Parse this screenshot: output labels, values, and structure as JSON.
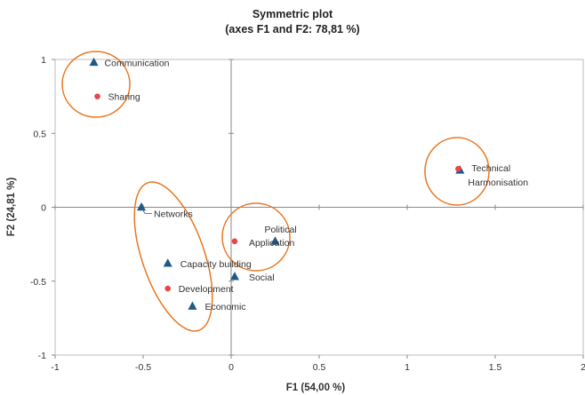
{
  "chart_data": {
    "type": "scatter",
    "title": "Symmetric plot",
    "subtitle": "(axes F1 and F2: 78,81 %)",
    "xlabel": "F1 (54,00 %)",
    "ylabel": "F2 (24,81 %)",
    "xlim": [
      -1,
      2
    ],
    "ylim": [
      -1,
      1
    ],
    "x_ticks": [
      "-1",
      "-0.5",
      "0",
      "0.5",
      "1",
      "1.5",
      "2"
    ],
    "y_ticks": [
      "1",
      "0.5",
      "0",
      "-0.5",
      "-1"
    ],
    "grid": false,
    "legend": "none",
    "series": [
      {
        "marker": "triangle",
        "color": "#1f5a86",
        "points": [
          {
            "label": "Communication",
            "x": -0.78,
            "y": 0.98
          },
          {
            "label": "Networks",
            "x": -0.51,
            "y": 0.0
          },
          {
            "label": "Political",
            "x": 0.25,
            "y": -0.23
          },
          {
            "label": "Capacity building",
            "x": -0.36,
            "y": -0.38
          },
          {
            "label": "Social",
            "x": 0.02,
            "y": -0.47
          },
          {
            "label": "Economic",
            "x": -0.22,
            "y": -0.67
          },
          {
            "label": "Harmonisation",
            "x": 1.3,
            "y": 0.25
          }
        ]
      },
      {
        "marker": "circle",
        "color": "#e8474a",
        "points": [
          {
            "label": "Sharing",
            "x": -0.76,
            "y": 0.75
          },
          {
            "label": "Application",
            "x": 0.02,
            "y": -0.23
          },
          {
            "label": "Development",
            "x": -0.36,
            "y": -0.55
          },
          {
            "label": "Technical",
            "x": 1.29,
            "y": 0.26
          }
        ]
      }
    ],
    "annotations": {
      "ellipse_color": "#e87722"
    }
  }
}
